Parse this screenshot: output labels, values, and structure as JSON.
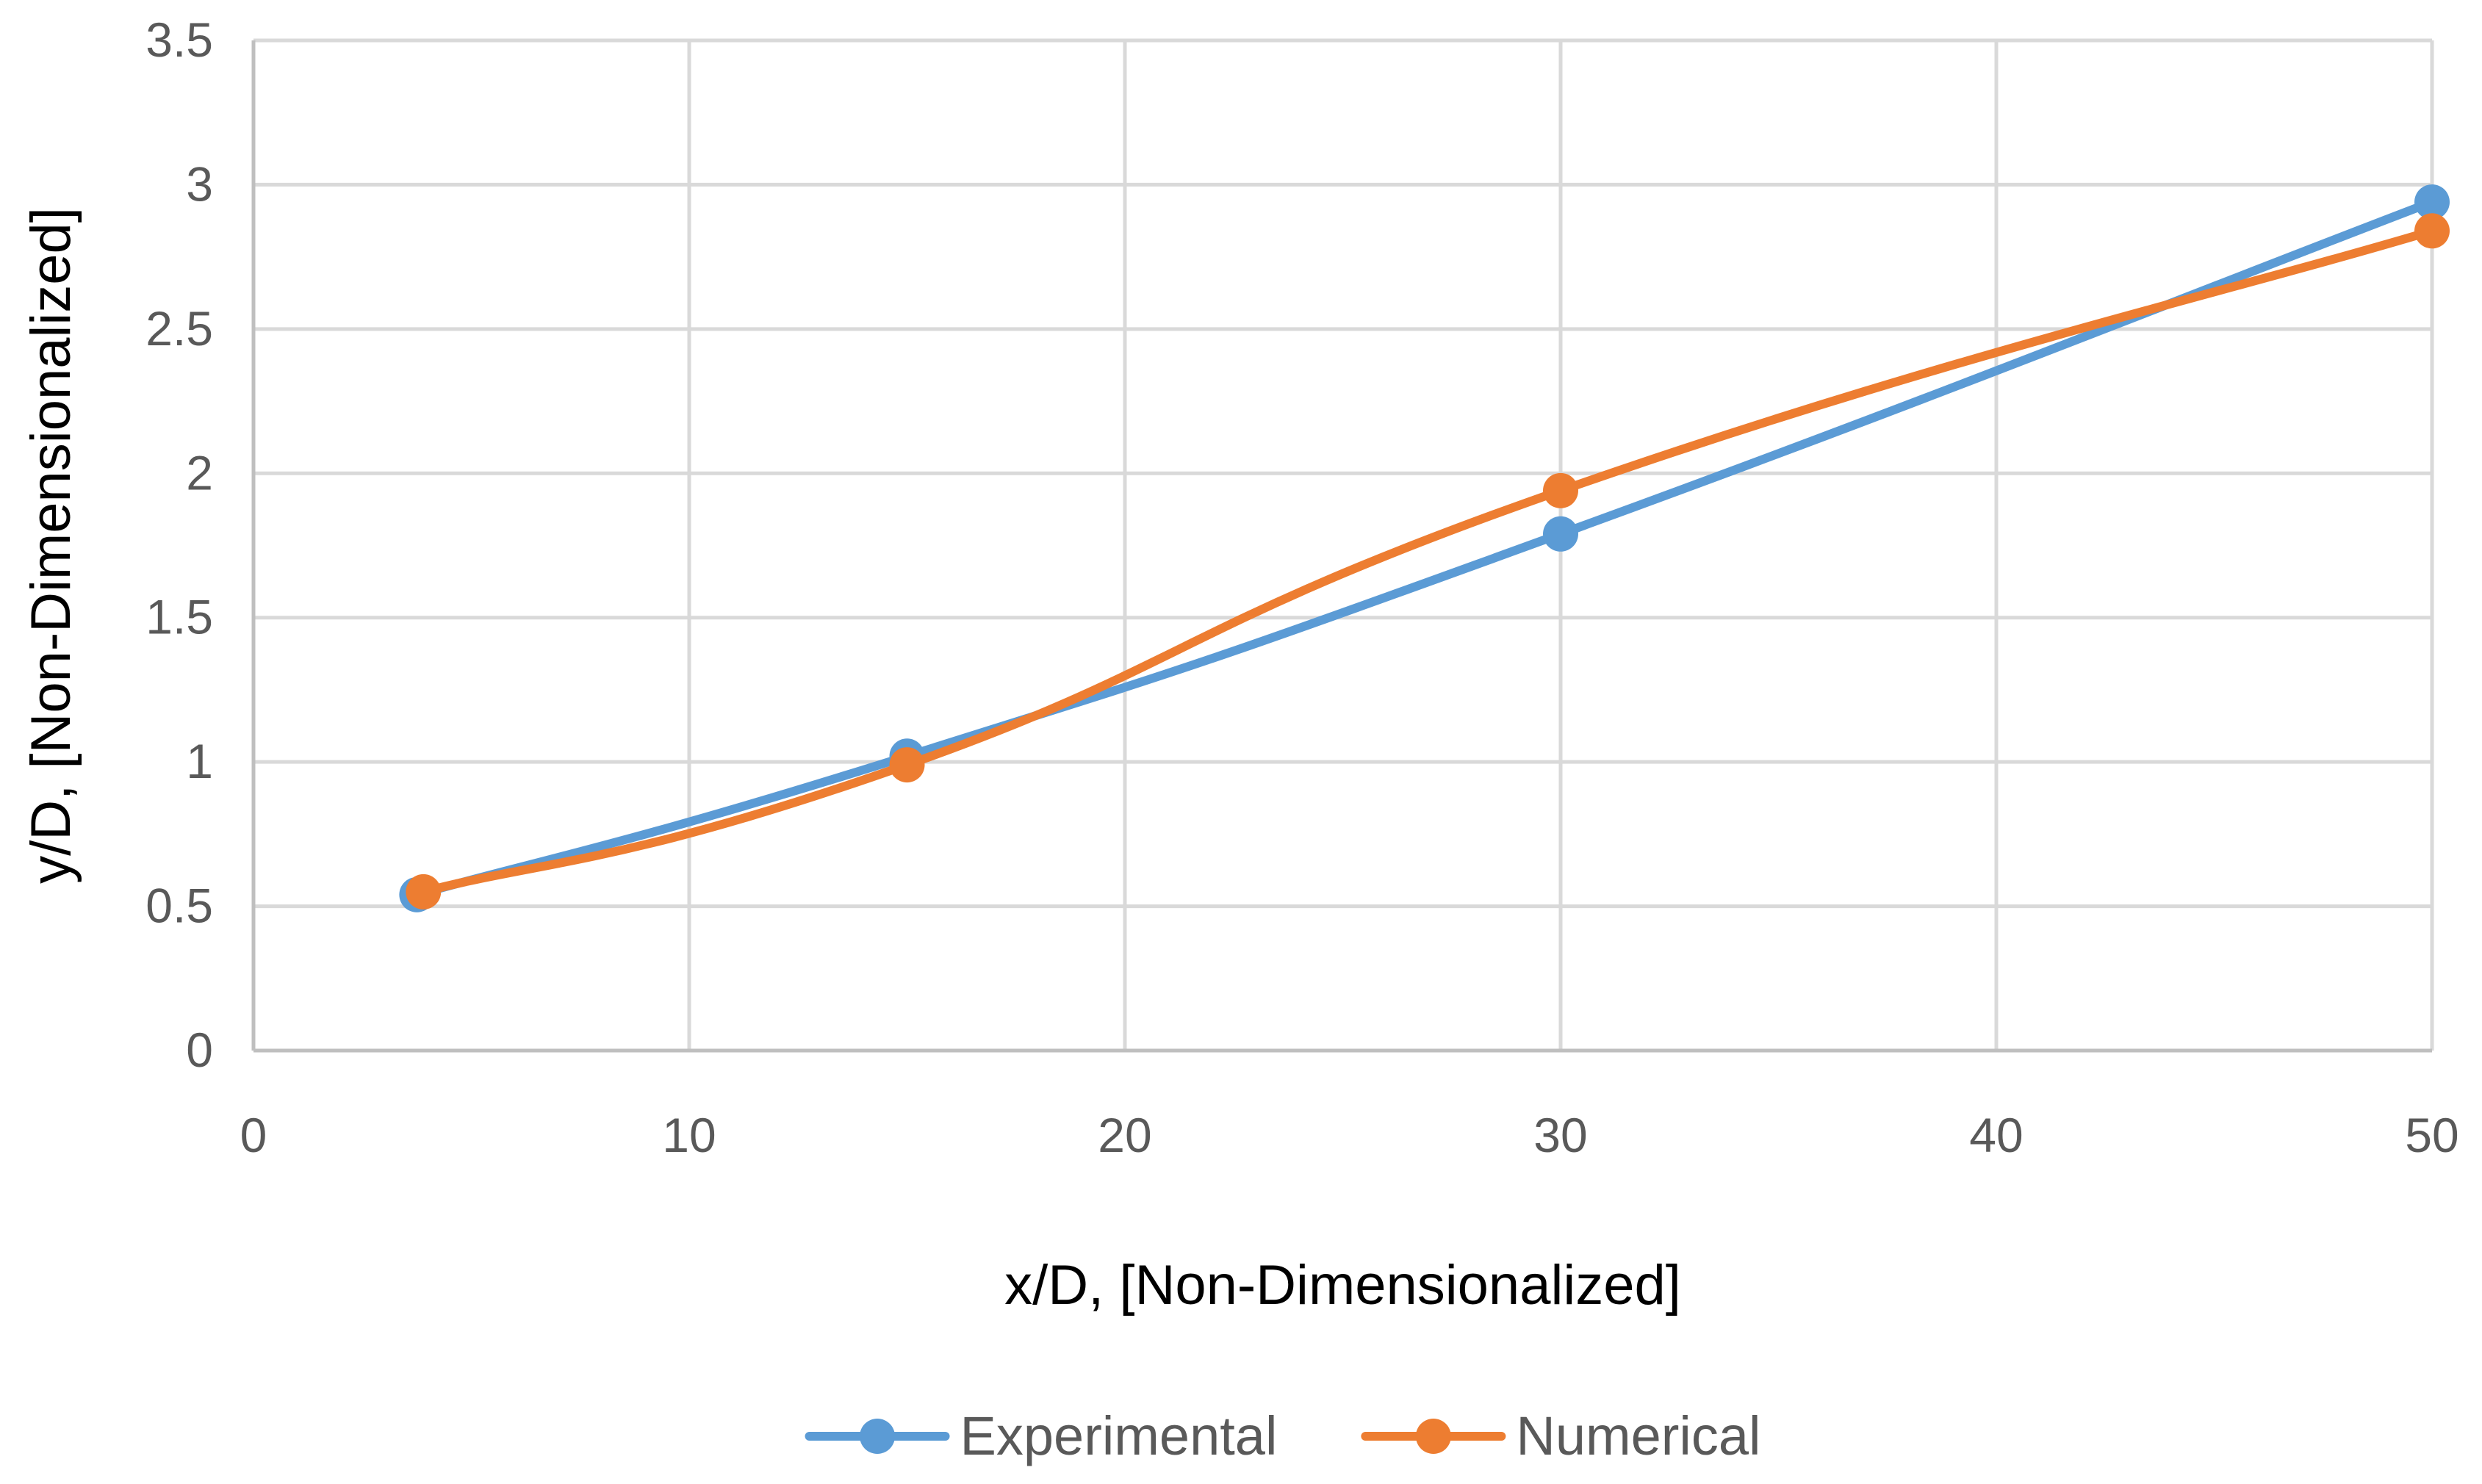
{
  "chart_data": {
    "type": "line",
    "title": "",
    "xlabel": "x/D, [Non-Dimensionalized]",
    "ylabel": "y/D, [Non-Dimensionalized]",
    "xlim": [
      0,
      50
    ],
    "ylim": [
      0,
      3.5
    ],
    "xticks": [
      0,
      10,
      20,
      30,
      40,
      50
    ],
    "yticks": [
      0,
      0.5,
      1,
      1.5,
      2,
      2.5,
      3,
      3.5
    ],
    "xtick_labels": [
      "0",
      "10",
      "20",
      "30",
      "40",
      "50"
    ],
    "ytick_labels": [
      "0",
      "0.5",
      "1",
      "1.5",
      "2",
      "2.5",
      "3",
      "3.5"
    ],
    "grid": true,
    "smooth": true,
    "legend_position": "bottom-center",
    "series": [
      {
        "name": "Experimental",
        "color": "#5b9bd5",
        "x": [
          3.75,
          15,
          30,
          50
        ],
        "y": [
          0.54,
          1.02,
          1.79,
          2.94
        ]
      },
      {
        "name": "Numerical",
        "color": "#ed7d31",
        "x": [
          3.9,
          15,
          30,
          50
        ],
        "y": [
          0.55,
          0.99,
          1.94,
          2.84
        ]
      }
    ]
  }
}
